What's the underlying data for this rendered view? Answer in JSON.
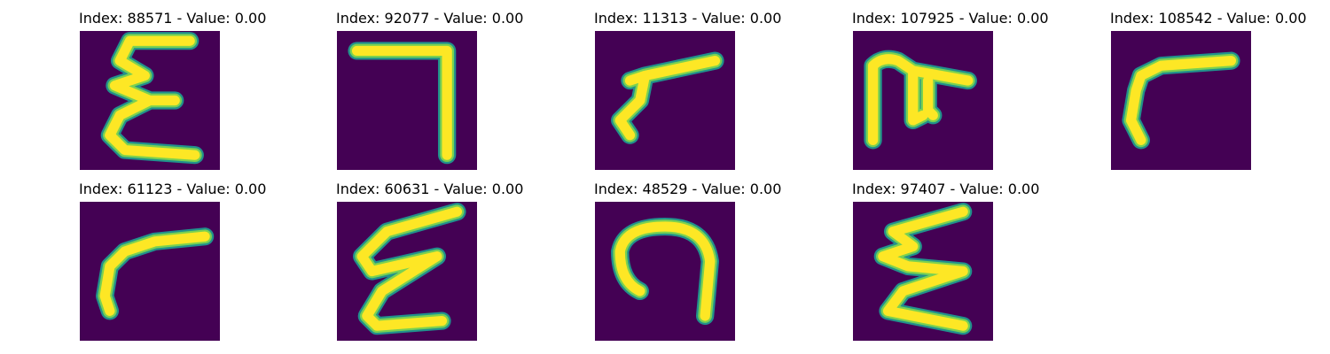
{
  "colors": {
    "background": "#440154",
    "stroke_edge": "#21918c",
    "stroke_mid": "#7ad151",
    "stroke_core": "#fde725"
  },
  "panels": [
    {
      "title": "Index: 88571 - Value: 0.00"
    },
    {
      "title": "Index: 92077 - Value: 0.00"
    },
    {
      "title": "Index: 11313 - Value: 0.00"
    },
    {
      "title": "Index: 107925 - Value: 0.00"
    },
    {
      "title": "Index: 108542 - Value: 0.00"
    },
    {
      "title": "Index: 61123 - Value: 0.00"
    },
    {
      "title": "Index: 60631 - Value: 0.00"
    },
    {
      "title": "Index: 48529 - Value: 0.00"
    },
    {
      "title": "Index: 97407 - Value: 0.00"
    }
  ]
}
